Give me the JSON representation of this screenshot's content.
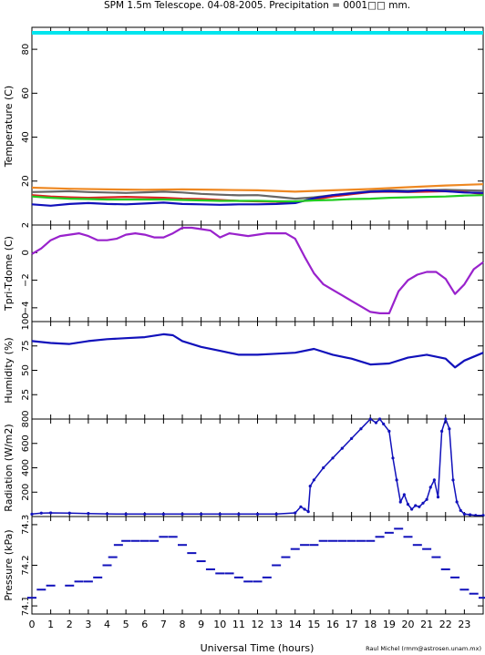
{
  "title": "SPM 1.5m Telescope. 04-08-2005. Precipitation = 0001□□ mm.",
  "credit": "Raul Michel (rmm@astrosen.unam.mx)",
  "chart_data": [
    {
      "type": "line",
      "ylabel": "Temperature (C)",
      "ylim": [
        0,
        90
      ],
      "yticks": [
        20,
        40,
        60,
        80
      ],
      "series": [
        {
          "color": "#00e5ee",
          "x": [
            0,
            24
          ],
          "y": [
            87.5,
            87.5
          ]
        },
        {
          "color": "#ee8822",
          "x": [
            0,
            2,
            4,
            6,
            8,
            10,
            12,
            14,
            16,
            18,
            20,
            22,
            24
          ],
          "y": [
            17,
            16.5,
            16.2,
            16,
            16.2,
            16,
            15.8,
            15.2,
            15.8,
            16.4,
            17.2,
            18,
            18.6
          ]
        },
        {
          "color": "#666666",
          "x": [
            0,
            1,
            2,
            3,
            4,
            5,
            6,
            7,
            8,
            9,
            10,
            11,
            12,
            13,
            14,
            15,
            16,
            17,
            18,
            19,
            20,
            21,
            22,
            23,
            24
          ],
          "y": [
            15,
            15.2,
            15.4,
            15,
            14.8,
            14.6,
            14.9,
            15.2,
            14.8,
            14.2,
            13.8,
            13.5,
            13.6,
            12.8,
            12,
            12.6,
            13.6,
            14.6,
            15.4,
            15.8,
            15.6,
            15.8,
            16,
            15.8,
            15.6
          ]
        },
        {
          "color": "#dd2222",
          "x": [
            0,
            1,
            2,
            3,
            4,
            5,
            6,
            7,
            8,
            9,
            10,
            11,
            12,
            13,
            14,
            15,
            16,
            17,
            18,
            19,
            20,
            21,
            22,
            23,
            24
          ],
          "y": [
            13.6,
            13,
            12.6,
            12.4,
            12.6,
            12.8,
            12.6,
            12.4,
            12,
            11.8,
            11.4,
            11,
            10.8,
            10.6,
            10.4,
            11.6,
            13,
            14,
            15,
            15.2,
            15,
            15.2,
            15.4,
            15,
            14.2
          ]
        },
        {
          "color": "#1111bb",
          "x": [
            0,
            1,
            2,
            3,
            4,
            5,
            6,
            7,
            8,
            9,
            10,
            11,
            12,
            13,
            14,
            15,
            16,
            17,
            18,
            19,
            20,
            21,
            22,
            23,
            24
          ],
          "y": [
            9.4,
            8.8,
            9.6,
            10,
            9.6,
            9.4,
            9.8,
            10.2,
            9.6,
            9.4,
            9.2,
            9.4,
            9.4,
            9.6,
            10,
            12.2,
            13.6,
            14.4,
            15.2,
            15.4,
            15.2,
            15.8,
            15.4,
            14.8,
            14.6
          ]
        },
        {
          "color": "#22cc22",
          "x": [
            0,
            1,
            2,
            3,
            4,
            5,
            6,
            7,
            8,
            9,
            10,
            11,
            12,
            13,
            14,
            15,
            16,
            17,
            18,
            19,
            20,
            21,
            22,
            23,
            24
          ],
          "y": [
            13,
            12.4,
            12,
            11.8,
            11.6,
            11.6,
            11.6,
            11.6,
            11.4,
            11.2,
            11,
            11,
            11,
            10.8,
            10.8,
            11.2,
            11.4,
            11.8,
            12,
            12.4,
            12.6,
            12.8,
            13,
            13.4,
            13.6
          ]
        }
      ]
    },
    {
      "type": "line",
      "ylabel": "Tpri-Tdome (C)",
      "ylim": [
        -5,
        2
      ],
      "yticks": [
        -4,
        -2,
        0,
        2
      ],
      "series": [
        {
          "color": "#9922cc",
          "x": [
            0,
            0.5,
            1,
            1.5,
            2,
            2.5,
            3,
            3.5,
            4,
            4.5,
            5,
            5.5,
            6,
            6.5,
            7,
            7.5,
            8,
            8.5,
            9,
            9.5,
            10,
            10.5,
            11,
            11.5,
            12,
            12.5,
            13,
            13.5,
            14,
            14.5,
            15,
            15.5,
            16,
            16.5,
            17,
            17.5,
            18,
            18.5,
            19,
            19.5,
            20,
            20.5,
            21,
            21.5,
            22,
            22.5,
            23,
            23.5,
            24
          ],
          "y": [
            -0.1,
            0.3,
            0.9,
            1.2,
            1.3,
            1.4,
            1.2,
            0.9,
            0.9,
            1.0,
            1.3,
            1.4,
            1.3,
            1.1,
            1.1,
            1.4,
            1.8,
            1.8,
            1.7,
            1.6,
            1.1,
            1.4,
            1.3,
            1.2,
            1.3,
            1.4,
            1.4,
            1.4,
            1.0,
            -0.3,
            -1.5,
            -2.3,
            -2.7,
            -3.1,
            -3.5,
            -3.9,
            -4.3,
            -4.4,
            -4.4,
            -2.8,
            -2.0,
            -1.6,
            -1.4,
            -1.4,
            -1.9,
            -3.0,
            -2.3,
            -1.2,
            -0.7
          ]
        }
      ]
    },
    {
      "type": "line",
      "ylabel": "Humidity (%)",
      "ylim": [
        0,
        100
      ],
      "yticks": [
        25,
        50,
        75,
        100
      ],
      "series": [
        {
          "color": "#1111bb",
          "x": [
            0,
            1,
            2,
            3,
            4,
            5,
            6,
            7,
            7.5,
            8,
            9,
            10,
            11,
            12,
            13,
            14,
            15,
            16,
            17,
            18,
            19,
            20,
            21,
            22,
            22.5,
            23,
            24
          ],
          "y": [
            80,
            78,
            77,
            80,
            82,
            83,
            84,
            87,
            86,
            80,
            74,
            70,
            66,
            66,
            67,
            68,
            72,
            66,
            62,
            56,
            57,
            63,
            66,
            62,
            53,
            60,
            68
          ]
        }
      ]
    },
    {
      "type": "scatter",
      "ylabel": "Radiation (W/m2)",
      "ylim": [
        0,
        800
      ],
      "yticks": [
        200,
        400,
        600,
        800
      ],
      "series": [
        {
          "color": "#1111bb",
          "x": [
            0,
            0.5,
            1,
            2,
            3,
            4,
            5,
            6,
            7,
            8,
            9,
            10,
            11,
            12,
            13,
            14,
            14.3,
            14.5,
            14.7,
            14.8,
            15,
            15.5,
            16,
            16.5,
            17,
            17.5,
            18,
            18.3,
            18.5,
            18.7,
            19,
            19.2,
            19.4,
            19.6,
            19.8,
            20,
            20.2,
            20.4,
            20.6,
            20.8,
            21,
            21.2,
            21.4,
            21.6,
            21.8,
            22,
            22.2,
            22.4,
            22.6,
            22.8,
            23,
            23.3,
            23.6,
            24
          ],
          "y": [
            20,
            28,
            30,
            28,
            25,
            22,
            20,
            20,
            20,
            20,
            20,
            20,
            20,
            20,
            20,
            30,
            80,
            60,
            40,
            250,
            300,
            400,
            480,
            560,
            640,
            720,
            800,
            770,
            800,
            760,
            700,
            480,
            300,
            120,
            180,
            100,
            60,
            90,
            80,
            110,
            140,
            240,
            300,
            160,
            700,
            800,
            720,
            300,
            120,
            50,
            20,
            15,
            10,
            10
          ]
        }
      ]
    },
    {
      "type": "scatter",
      "xlabel": "Universal Time (hours)",
      "ylabel": "Pressure (kPa)",
      "xlim": [
        0,
        24
      ],
      "xticks": [
        0,
        1,
        2,
        3,
        4,
        5,
        6,
        7,
        8,
        9,
        10,
        11,
        12,
        13,
        14,
        15,
        16,
        17,
        18,
        19,
        20,
        21,
        22,
        23
      ],
      "ylim": [
        74.08,
        74.32
      ],
      "yticks": [
        74.1,
        74.2,
        74.3
      ],
      "series": [
        {
          "color": "#1111bb",
          "x": [
            0,
            0.5,
            1,
            2,
            2.5,
            3,
            3.5,
            4,
            4.3,
            4.6,
            5,
            5.5,
            6,
            6.5,
            7,
            7.5,
            8,
            8.5,
            9,
            9.5,
            10,
            10.5,
            11,
            11.5,
            12,
            12.5,
            13,
            13.5,
            14,
            14.5,
            15,
            15.5,
            16,
            16.5,
            17,
            17.5,
            18,
            18.5,
            19,
            19.5,
            20,
            20.5,
            21,
            21.5,
            22,
            22.5,
            23,
            23.5,
            24
          ],
          "y": [
            74.12,
            74.14,
            74.15,
            74.15,
            74.16,
            74.16,
            74.17,
            74.2,
            74.22,
            74.25,
            74.26,
            74.26,
            74.26,
            74.26,
            74.27,
            74.27,
            74.25,
            74.23,
            74.21,
            74.19,
            74.18,
            74.18,
            74.17,
            74.16,
            74.16,
            74.17,
            74.2,
            74.22,
            74.24,
            74.25,
            74.25,
            74.26,
            74.26,
            74.26,
            74.26,
            74.26,
            74.26,
            74.27,
            74.28,
            74.29,
            74.27,
            74.25,
            74.24,
            74.22,
            74.19,
            74.17,
            74.14,
            74.13,
            74.12
          ]
        }
      ]
    }
  ]
}
